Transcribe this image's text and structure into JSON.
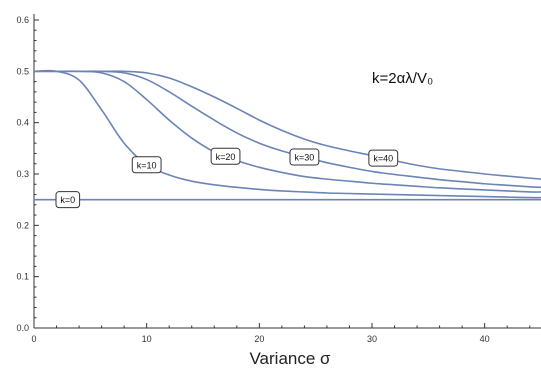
{
  "chart_data": {
    "type": "line",
    "title": "",
    "xlabel": "Variance σ",
    "ylabel": "",
    "annotation": "k=2αλ/V₀",
    "xlim": [
      0,
      45
    ],
    "ylim": [
      0,
      0.6
    ],
    "x_ticks": [
      0,
      10,
      20,
      30,
      40
    ],
    "y_ticks": [
      0.0,
      0.1,
      0.2,
      0.3,
      0.4,
      0.5,
      0.6
    ],
    "x_tick_labels": [
      "0",
      "10",
      "20",
      "30",
      "40"
    ],
    "y_tick_labels": [
      "0.0",
      "0.1",
      "0.2",
      "0.3",
      "0.4",
      "0.5",
      "0.6"
    ],
    "grid": false,
    "line_color": "#6b84b8",
    "x": [
      0,
      2,
      4,
      6,
      8,
      10,
      12,
      14,
      16,
      18,
      20,
      22,
      24,
      26,
      28,
      30,
      32,
      34,
      36,
      38,
      40,
      42,
      44,
      45
    ],
    "series": [
      {
        "name": "k=0",
        "label_at": 3,
        "values": [
          0.25,
          0.25,
          0.25,
          0.25,
          0.25,
          0.25,
          0.25,
          0.25,
          0.25,
          0.25,
          0.25,
          0.25,
          0.25,
          0.25,
          0.25,
          0.25,
          0.25,
          0.25,
          0.25,
          0.25,
          0.25,
          0.25,
          0.25,
          0.25
        ]
      },
      {
        "name": "k=10",
        "label_at": 10,
        "values": [
          0.5,
          0.5,
          0.483,
          0.425,
          0.36,
          0.318,
          0.298,
          0.286,
          0.279,
          0.274,
          0.27,
          0.267,
          0.265,
          0.263,
          0.262,
          0.261,
          0.26,
          0.259,
          0.258,
          0.257,
          0.256,
          0.255,
          0.254,
          0.254
        ]
      },
      {
        "name": "k=20",
        "label_at": 17,
        "values": [
          0.5,
          0.5,
          0.5,
          0.497,
          0.48,
          0.445,
          0.405,
          0.37,
          0.343,
          0.326,
          0.313,
          0.303,
          0.295,
          0.29,
          0.286,
          0.282,
          0.279,
          0.276,
          0.273,
          0.271,
          0.269,
          0.267,
          0.265,
          0.265
        ]
      },
      {
        "name": "k=30",
        "label_at": 24,
        "values": [
          0.5,
          0.5,
          0.5,
          0.5,
          0.497,
          0.484,
          0.46,
          0.432,
          0.405,
          0.38,
          0.36,
          0.345,
          0.333,
          0.322,
          0.313,
          0.305,
          0.299,
          0.294,
          0.289,
          0.285,
          0.281,
          0.278,
          0.275,
          0.274
        ]
      },
      {
        "name": "k=40",
        "label_at": 31,
        "values": [
          0.5,
          0.5,
          0.5,
          0.5,
          0.5,
          0.497,
          0.487,
          0.47,
          0.45,
          0.428,
          0.405,
          0.385,
          0.368,
          0.355,
          0.345,
          0.336,
          0.326,
          0.317,
          0.31,
          0.305,
          0.3,
          0.296,
          0.292,
          0.29
        ]
      }
    ]
  }
}
